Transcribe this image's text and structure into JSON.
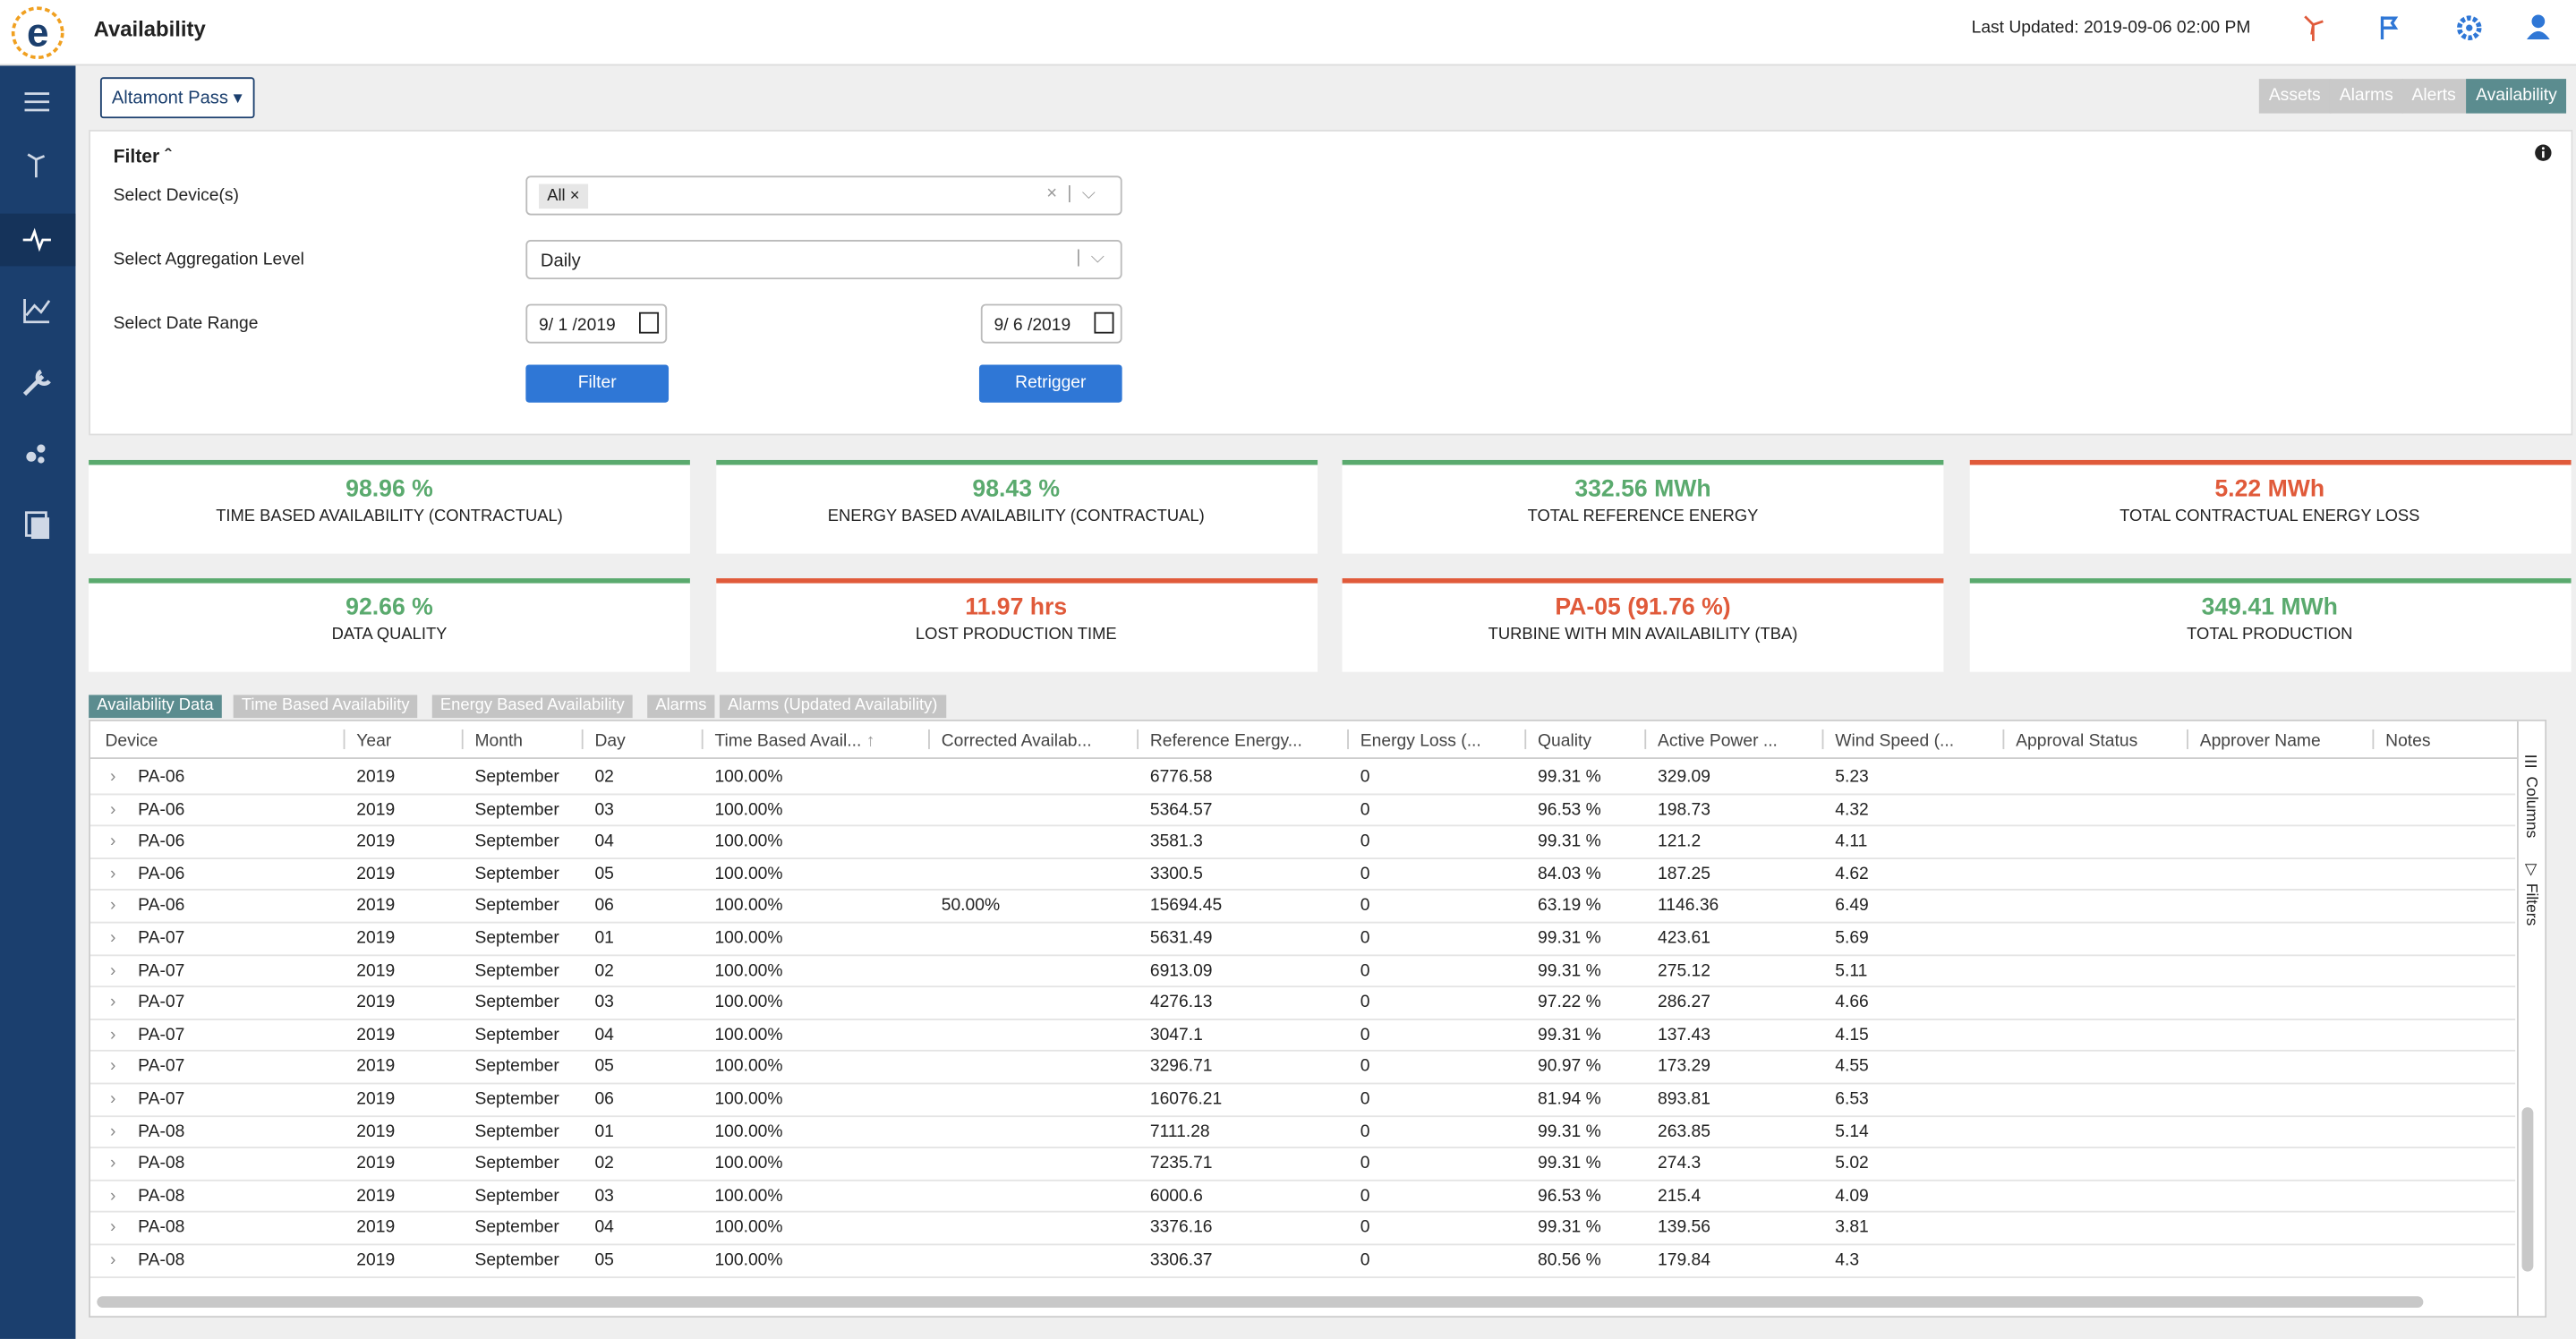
{
  "header": {
    "title": "Availability",
    "last_updated": "Last Updated: 2019-09-06 02:00 PM"
  },
  "site": "Altamont Pass",
  "nav_tabs": [
    "Assets",
    "Alarms",
    "Alerts",
    "Availability"
  ],
  "filter": {
    "title": "Filter",
    "device_label": "Select Device(s)",
    "device_value": "All",
    "aggregation_label": "Select Aggregation Level",
    "aggregation_value": "Daily",
    "date_label": "Select Date Range",
    "start_date": "9/ 1 /2019",
    "end_date": "9/ 6 /2019",
    "filter_button": "Filter",
    "retrigger_button": "Retrigger"
  },
  "kpis": [
    {
      "value": "98.96 %",
      "label": "TIME BASED AVAILABILITY (CONTRACTUAL)",
      "status": "good"
    },
    {
      "value": "98.43 %",
      "label": "ENERGY BASED AVAILABILITY (CONTRACTUAL)",
      "status": "good"
    },
    {
      "value": "332.56 MWh",
      "label": "TOTAL REFERENCE ENERGY",
      "status": "good"
    },
    {
      "value": "5.22 MWh",
      "label": "TOTAL CONTRACTUAL ENERGY LOSS",
      "status": "bad"
    },
    {
      "value": "92.66 %",
      "label": "DATA QUALITY",
      "status": "good"
    },
    {
      "value": "11.97 hrs",
      "label": "LOST PRODUCTION TIME",
      "status": "bad"
    },
    {
      "value": "PA-05 (91.76 %)",
      "label": "TURBINE WITH MIN AVAILABILITY (TBA)",
      "status": "bad"
    },
    {
      "value": "349.41 MWh",
      "label": "TOTAL PRODUCTION",
      "status": "good"
    }
  ],
  "table": {
    "tabs": [
      "Availability Data",
      "Time Based Availability",
      "Energy Based Availability",
      "Alarms",
      "Alarms (Updated Availability)"
    ],
    "columns": [
      "Device",
      "Year",
      "Month",
      "Day",
      "Time Based Avail...",
      "Corrected Availab...",
      "Reference Energy...",
      "Energy Loss (...",
      "Quality",
      "Active Power ...",
      "Wind Speed (...",
      "Approval Status",
      "Approver Name",
      "Notes"
    ],
    "side_panels": [
      "Columns",
      "Filters"
    ],
    "rows": [
      {
        "device": "PA-06",
        "year": "2019",
        "month": "September",
        "day": "02",
        "tba": "100.00%",
        "ref": "6776.58",
        "loss": "0",
        "quality": "99.31 %",
        "power": "329.09",
        "wind": "5.23"
      },
      {
        "device": "PA-06",
        "year": "2019",
        "month": "September",
        "day": "03",
        "tba": "100.00%",
        "ref": "5364.57",
        "loss": "0",
        "quality": "96.53 %",
        "power": "198.73",
        "wind": "4.32"
      },
      {
        "device": "PA-06",
        "year": "2019",
        "month": "September",
        "day": "04",
        "tba": "100.00%",
        "ref": "3581.3",
        "loss": "0",
        "quality": "99.31 %",
        "power": "121.2",
        "wind": "4.11"
      },
      {
        "device": "PA-06",
        "year": "2019",
        "month": "September",
        "day": "05",
        "tba": "100.00%",
        "ref": "3300.5",
        "loss": "0",
        "quality": "84.03 %",
        "power": "187.25",
        "wind": "4.62"
      },
      {
        "device": "PA-06",
        "year": "2019",
        "month": "September",
        "day": "06",
        "tba": "100.00%",
        "corrected": "50.00%",
        "ref": "15694.45",
        "loss": "0",
        "quality": "63.19 %",
        "power": "1146.36",
        "wind": "6.49"
      },
      {
        "device": "PA-07",
        "year": "2019",
        "month": "September",
        "day": "01",
        "tba": "100.00%",
        "ref": "5631.49",
        "loss": "0",
        "quality": "99.31 %",
        "power": "423.61",
        "wind": "5.69"
      },
      {
        "device": "PA-07",
        "year": "2019",
        "month": "September",
        "day": "02",
        "tba": "100.00%",
        "ref": "6913.09",
        "loss": "0",
        "quality": "99.31 %",
        "power": "275.12",
        "wind": "5.11"
      },
      {
        "device": "PA-07",
        "year": "2019",
        "month": "September",
        "day": "03",
        "tba": "100.00%",
        "ref": "4276.13",
        "loss": "0",
        "quality": "97.22 %",
        "power": "286.27",
        "wind": "4.66"
      },
      {
        "device": "PA-07",
        "year": "2019",
        "month": "September",
        "day": "04",
        "tba": "100.00%",
        "ref": "3047.1",
        "loss": "0",
        "quality": "99.31 %",
        "power": "137.43",
        "wind": "4.15"
      },
      {
        "device": "PA-07",
        "year": "2019",
        "month": "September",
        "day": "05",
        "tba": "100.00%",
        "ref": "3296.71",
        "loss": "0",
        "quality": "90.97 %",
        "power": "173.29",
        "wind": "4.55"
      },
      {
        "device": "PA-07",
        "year": "2019",
        "month": "September",
        "day": "06",
        "tba": "100.00%",
        "ref": "16076.21",
        "loss": "0",
        "quality": "81.94 %",
        "power": "893.81",
        "wind": "6.53"
      },
      {
        "device": "PA-08",
        "year": "2019",
        "month": "September",
        "day": "01",
        "tba": "100.00%",
        "ref": "7111.28",
        "loss": "0",
        "quality": "99.31 %",
        "power": "263.85",
        "wind": "5.14"
      },
      {
        "device": "PA-08",
        "year": "2019",
        "month": "September",
        "day": "02",
        "tba": "100.00%",
        "ref": "7235.71",
        "loss": "0",
        "quality": "99.31 %",
        "power": "274.3",
        "wind": "5.02"
      },
      {
        "device": "PA-08",
        "year": "2019",
        "month": "September",
        "day": "03",
        "tba": "100.00%",
        "ref": "6000.6",
        "loss": "0",
        "quality": "96.53 %",
        "power": "215.4",
        "wind": "4.09"
      },
      {
        "device": "PA-08",
        "year": "2019",
        "month": "September",
        "day": "04",
        "tba": "100.00%",
        "ref": "3376.16",
        "loss": "0",
        "quality": "99.31 %",
        "power": "139.56",
        "wind": "3.81"
      },
      {
        "device": "PA-08",
        "year": "2019",
        "month": "September",
        "day": "05",
        "tba": "100.00%",
        "ref": "3306.37",
        "loss": "0",
        "quality": "80.56 %",
        "power": "179.84",
        "wind": "4.3"
      }
    ]
  }
}
